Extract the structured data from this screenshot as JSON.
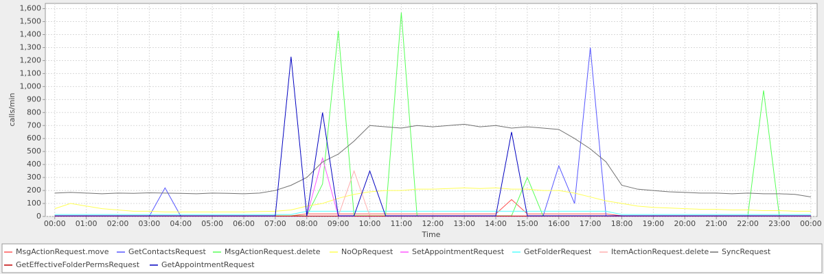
{
  "chart_data": {
    "type": "line",
    "y_label": "calls/min",
    "x_label": "Time",
    "xlim": [
      -0.3,
      24.2
    ],
    "ylim": [
      0,
      1640
    ],
    "xticks": [
      {
        "value": 0,
        "label": "00:00"
      },
      {
        "value": 1,
        "label": "01:00"
      },
      {
        "value": 2,
        "label": "02:00"
      },
      {
        "value": 3,
        "label": "03:00"
      },
      {
        "value": 4,
        "label": "04:00"
      },
      {
        "value": 5,
        "label": "05:00"
      },
      {
        "value": 6,
        "label": "06:00"
      },
      {
        "value": 7,
        "label": "07:00"
      },
      {
        "value": 8,
        "label": "08:00"
      },
      {
        "value": 9,
        "label": "09:00"
      },
      {
        "value": 10,
        "label": "10:00"
      },
      {
        "value": 11,
        "label": "11:00"
      },
      {
        "value": 12,
        "label": "12:00"
      },
      {
        "value": 13,
        "label": "13:00"
      },
      {
        "value": 14,
        "label": "14:00"
      },
      {
        "value": 15,
        "label": "15:00"
      },
      {
        "value": 16,
        "label": "16:00"
      },
      {
        "value": 17,
        "label": "17:00"
      },
      {
        "value": 18,
        "label": "18:00"
      },
      {
        "value": 19,
        "label": "19:00"
      },
      {
        "value": 20,
        "label": "20:00"
      },
      {
        "value": 21,
        "label": "21:00"
      },
      {
        "value": 22,
        "label": "22:00"
      },
      {
        "value": 23,
        "label": "23:00"
      },
      {
        "value": 24,
        "label": "00:00"
      }
    ],
    "yticks": [
      0,
      100,
      200,
      300,
      400,
      500,
      600,
      700,
      800,
      900,
      {
        "value": 1000,
        "label": "1,000"
      },
      {
        "value": 1100,
        "label": "1,100"
      },
      {
        "value": 1200,
        "label": "1,200"
      },
      {
        "value": 1300,
        "label": "1,300"
      },
      {
        "value": 1400,
        "label": "1,400"
      },
      {
        "value": 1500,
        "label": "1,500"
      },
      {
        "value": 1600,
        "label": "1,600"
      }
    ],
    "grid": true,
    "legend": "bottom",
    "x": [
      0,
      0.5,
      1,
      1.5,
      2,
      2.5,
      3,
      3.5,
      4,
      4.5,
      5,
      5.5,
      6,
      6.5,
      7,
      7.5,
      8,
      8.5,
      9,
      9.5,
      10,
      10.5,
      11,
      11.5,
      12,
      12.5,
      13,
      13.5,
      14,
      14.5,
      15,
      15.5,
      16,
      16.5,
      17,
      17.5,
      18,
      18.5,
      19,
      19.5,
      20,
      20.5,
      21,
      21.5,
      22,
      22.5,
      23,
      23.5,
      24
    ],
    "series": [
      {
        "name": "MsgActionRequest.move",
        "color": "#ff5555",
        "values": [
          5,
          5,
          5,
          5,
          5,
          5,
          5,
          5,
          5,
          5,
          5,
          5,
          5,
          5,
          5,
          5,
          20,
          20,
          20,
          20,
          20,
          20,
          20,
          20,
          20,
          20,
          20,
          20,
          20,
          130,
          20,
          20,
          20,
          20,
          20,
          20,
          5,
          5,
          5,
          5,
          5,
          5,
          5,
          5,
          5,
          5,
          5,
          5,
          5
        ]
      },
      {
        "name": "GetContactsRequest",
        "color": "#5555ff",
        "values": [
          2,
          2,
          2,
          2,
          2,
          2,
          2,
          220,
          2,
          2,
          2,
          2,
          2,
          2,
          2,
          2,
          2,
          2,
          2,
          2,
          2,
          2,
          2,
          2,
          2,
          2,
          2,
          2,
          2,
          2,
          2,
          2,
          390,
          100,
          1300,
          2,
          2,
          2,
          2,
          2,
          2,
          2,
          2,
          2,
          2,
          2,
          2,
          2,
          2
        ]
      },
      {
        "name": "MsgActionRequest.delete",
        "color": "#55ff55",
        "values": [
          5,
          5,
          5,
          5,
          5,
          5,
          5,
          5,
          5,
          5,
          5,
          5,
          5,
          5,
          5,
          5,
          5,
          250,
          1430,
          5,
          5,
          5,
          1570,
          5,
          5,
          5,
          5,
          5,
          5,
          5,
          300,
          5,
          5,
          5,
          5,
          5,
          5,
          5,
          5,
          5,
          5,
          5,
          5,
          5,
          5,
          970,
          5,
          5,
          5
        ]
      },
      {
        "name": "NoOpRequest",
        "color": "#ffff55",
        "values": [
          60,
          100,
          80,
          60,
          50,
          40,
          40,
          35,
          35,
          35,
          35,
          35,
          35,
          38,
          40,
          50,
          80,
          100,
          140,
          170,
          190,
          200,
          200,
          210,
          210,
          215,
          220,
          215,
          220,
          210,
          210,
          200,
          200,
          180,
          150,
          120,
          100,
          80,
          70,
          65,
          60,
          55,
          55,
          50,
          50,
          45,
          45,
          40,
          40
        ]
      },
      {
        "name": "SetAppointmentRequest",
        "color": "#ff55ff",
        "values": [
          2,
          2,
          2,
          2,
          2,
          2,
          2,
          2,
          2,
          2,
          2,
          2,
          2,
          2,
          2,
          2,
          2,
          450,
          2,
          2,
          2,
          2,
          2,
          2,
          2,
          2,
          2,
          2,
          2,
          2,
          2,
          2,
          2,
          2,
          2,
          2,
          2,
          2,
          2,
          2,
          2,
          2,
          2,
          2,
          2,
          2,
          2,
          2,
          2
        ]
      },
      {
        "name": "GetFolderRequest",
        "color": "#55ffff",
        "values": [
          15,
          15,
          15,
          15,
          15,
          15,
          15,
          15,
          15,
          15,
          15,
          15,
          15,
          15,
          15,
          15,
          40,
          40,
          40,
          40,
          40,
          40,
          40,
          40,
          40,
          40,
          40,
          40,
          40,
          40,
          40,
          40,
          40,
          40,
          40,
          40,
          15,
          15,
          15,
          15,
          15,
          15,
          15,
          15,
          15,
          15,
          15,
          15,
          15
        ]
      },
      {
        "name": "ItemActionRequest.delete",
        "color": "#ffafaf",
        "values": [
          3,
          3,
          3,
          3,
          3,
          3,
          3,
          3,
          3,
          3,
          3,
          3,
          3,
          3,
          3,
          3,
          3,
          3,
          3,
          350,
          3,
          3,
          3,
          3,
          3,
          3,
          3,
          3,
          3,
          3,
          3,
          3,
          3,
          3,
          3,
          3,
          3,
          3,
          3,
          3,
          3,
          3,
          3,
          3,
          3,
          3,
          3,
          3,
          3
        ]
      },
      {
        "name": "SyncRequest",
        "color": "#707070",
        "values": [
          180,
          185,
          180,
          175,
          180,
          178,
          182,
          180,
          178,
          175,
          180,
          178,
          175,
          180,
          200,
          240,
          300,
          420,
          480,
          580,
          700,
          690,
          680,
          700,
          690,
          700,
          710,
          690,
          700,
          680,
          690,
          680,
          670,
          600,
          520,
          420,
          240,
          210,
          200,
          190,
          185,
          180,
          180,
          175,
          180,
          175,
          175,
          170,
          150
        ]
      },
      {
        "name": "GetEffectiveFolderPermsRequest",
        "color": "#c00000",
        "values": [
          3,
          3,
          3,
          3,
          3,
          3,
          3,
          3,
          3,
          3,
          3,
          3,
          3,
          3,
          3,
          3,
          3,
          3,
          3,
          3,
          3,
          3,
          3,
          3,
          3,
          3,
          3,
          3,
          3,
          3,
          3,
          3,
          3,
          3,
          3,
          3,
          3,
          3,
          3,
          3,
          3,
          3,
          3,
          3,
          3,
          3,
          3,
          3,
          3
        ]
      },
      {
        "name": "GetAppointmentRequest",
        "color": "#0000c0",
        "values": [
          5,
          5,
          5,
          5,
          5,
          5,
          5,
          5,
          5,
          5,
          5,
          5,
          5,
          5,
          5,
          1230,
          5,
          800,
          5,
          5,
          350,
          5,
          5,
          5,
          5,
          5,
          5,
          5,
          5,
          650,
          5,
          5,
          5,
          5,
          5,
          5,
          5,
          5,
          5,
          5,
          5,
          5,
          5,
          5,
          5,
          5,
          5,
          5,
          5
        ]
      }
    ]
  }
}
